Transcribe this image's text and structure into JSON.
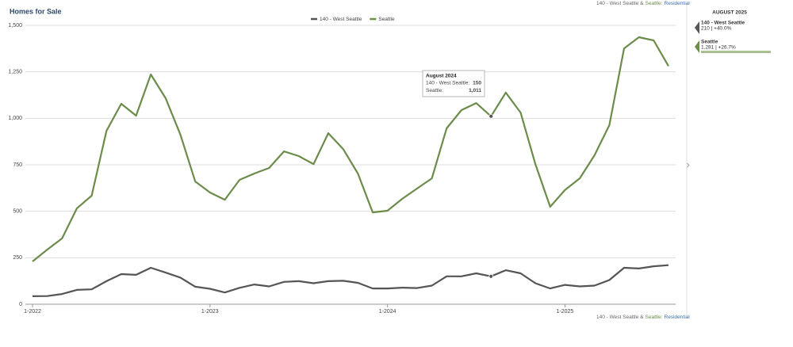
{
  "chart_data": {
    "type": "line",
    "title": "Homes for Sale",
    "source_parts": [
      "140 - West Seattle &",
      "Seattle:",
      "Residential"
    ],
    "categories": [
      "1-2022",
      null,
      null,
      null,
      null,
      null,
      null,
      null,
      null,
      null,
      null,
      null,
      "1-2023",
      null,
      null,
      null,
      null,
      null,
      null,
      null,
      null,
      null,
      null,
      null,
      "1-2024",
      null,
      null,
      null,
      null,
      null,
      null,
      null,
      null,
      null,
      null,
      null,
      "1-2025",
      null,
      null,
      null,
      null,
      null,
      null,
      null
    ],
    "series": [
      {
        "name": "140 - West Seattle",
        "color": "#555555",
        "values": [
          43,
          44,
          55,
          77,
          80,
          124,
          162,
          158,
          196,
          170,
          143,
          94,
          83,
          63,
          88,
          106,
          96,
          120,
          124,
          113,
          124,
          126,
          115,
          85,
          85,
          89,
          87,
          100,
          150,
          150,
          166,
          150,
          183,
          166,
          113,
          85,
          104,
          96,
          100,
          130,
          196,
          192,
          204,
          210
        ]
      },
      {
        "name": "Seattle",
        "color": "#6b8c4a",
        "values": [
          230,
          294,
          354,
          516,
          584,
          933,
          1078,
          1014,
          1236,
          1108,
          912,
          660,
          601,
          562,
          669,
          703,
          733,
          822,
          797,
          754,
          920,
          835,
          703,
          494,
          503,
          567,
          622,
          677,
          946,
          1044,
          1082,
          1011,
          1138,
          1031,
          754,
          524,
          614,
          677,
          801,
          963,
          1376,
          1436,
          1419,
          1281
        ],
        "value_labels": {
          "31": "1,011",
          "43": "1,281"
        }
      }
    ],
    "ylim": [
      0,
      1500
    ],
    "yticks": [
      0,
      250,
      500,
      750,
      {
        "value": 1000,
        "label": "1,000"
      },
      {
        "value": 1250,
        "label": "1,250"
      },
      {
        "value": 1500,
        "label": "1,500"
      }
    ],
    "grid": true,
    "tooltip": {
      "index": 31,
      "title": "August 2024",
      "rows": [
        {
          "name": "140 - West Seattle:",
          "value": "150"
        },
        {
          "name": "Seattle:",
          "value": "1,011"
        }
      ]
    },
    "panel": {
      "title": "AUGUST 2025",
      "entries": [
        {
          "name": "140 - West Seattle",
          "detail": "210 | +40.0%"
        },
        {
          "name": "Seattle",
          "detail": "1,281 | +26.7%"
        }
      ]
    }
  }
}
